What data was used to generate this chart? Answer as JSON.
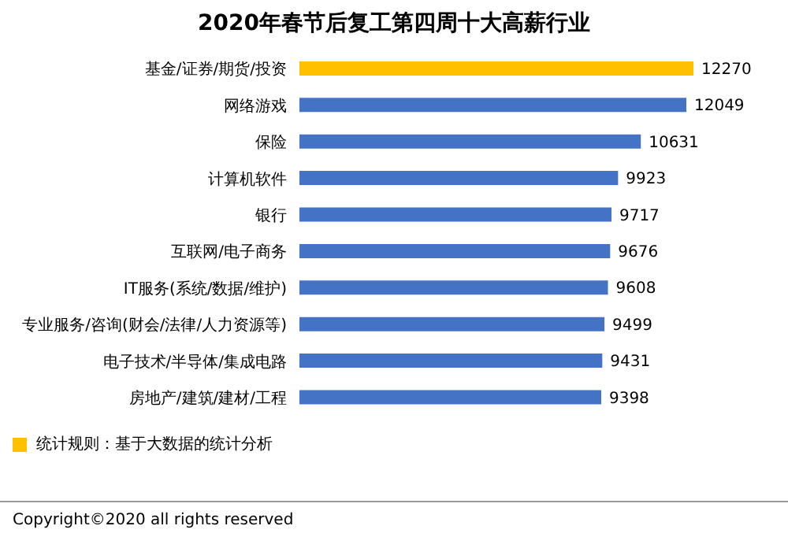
{
  "chart_data": {
    "type": "bar",
    "orientation": "horizontal",
    "title": "2020年春节后复工第四周十大高薪行业",
    "categories": [
      "基金/证券/期货/投资",
      "网络游戏",
      "保险",
      "计算机软件",
      "银行",
      "互联网/电子商务",
      "IT服务(系统/数据/维护)",
      "专业服务/咨询(财会/法律/人力资源等)",
      "电子技术/半导体/集成电路",
      "房地产/建筑/建材/工程"
    ],
    "values": [
      12270,
      12049,
      10631,
      9923,
      9717,
      9676,
      9608,
      9499,
      9431,
      9398
    ],
    "colors": [
      "#ffc000",
      "#4472c4",
      "#4472c4",
      "#4472c4",
      "#4472c4",
      "#4472c4",
      "#4472c4",
      "#4472c4",
      "#4472c4",
      "#4472c4"
    ],
    "data_labels": true,
    "annotations": [
      "统计规则：基于大数据的统计分析",
      "Copyright©2020 all rights reserved"
    ]
  }
}
